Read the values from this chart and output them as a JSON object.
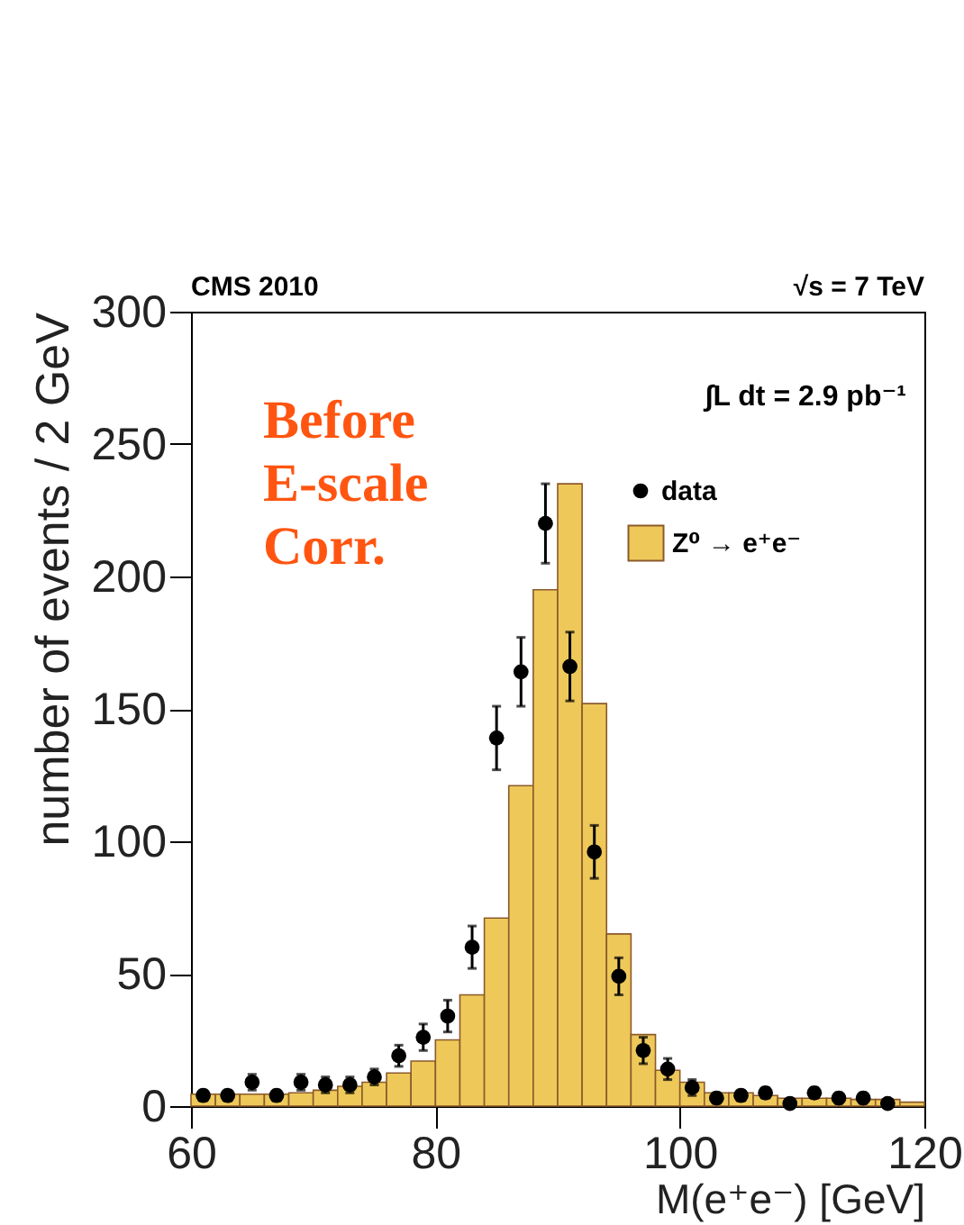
{
  "chart_data": {
    "type": "histogram",
    "xlabel": "M(e⁺e⁻) [GeV]",
    "ylabel": "number of events / 2 GeV",
    "annotations": [
      "CMS 2010",
      "√s = 7 TeV",
      "∫L dt = 2.9 pb⁻¹",
      "Before\nE-scale\nCorr."
    ],
    "xlim": [
      60,
      120
    ],
    "xticks": [
      60,
      80,
      100,
      120
    ],
    "ylim": [
      0,
      300
    ],
    "yticks": [
      0,
      50,
      100,
      150,
      200,
      250,
      300
    ],
    "legend": "top right",
    "grid": false,
    "marker": "circle",
    "series": [
      {
        "name": "data",
        "type": "scatter",
        "color": "#000000",
        "x": [
          61,
          63,
          65,
          67,
          69,
          71,
          73,
          75,
          77,
          79,
          81,
          83,
          85,
          87,
          89,
          91,
          93,
          95,
          97,
          99,
          101,
          103,
          105,
          107,
          109,
          111,
          113,
          115,
          117
        ],
        "values": [
          4,
          4,
          9,
          4,
          9,
          8,
          8,
          11,
          19,
          26,
          34,
          60,
          139,
          164,
          220,
          166,
          96,
          49,
          21,
          14,
          7,
          3,
          4,
          5,
          1,
          5,
          3,
          3,
          1
        ],
        "errors": [
          2,
          2,
          3,
          2,
          3,
          3,
          3,
          3,
          4,
          5,
          6,
          8,
          12,
          13,
          15,
          13,
          10,
          7,
          5,
          4,
          3,
          2,
          2,
          2,
          1,
          2,
          2,
          2,
          1
        ]
      },
      {
        "name": "Z⁰ → e⁺e⁻",
        "type": "histogram",
        "color": "#eec95a",
        "bins": [
          60,
          62,
          64,
          66,
          68,
          70,
          72,
          74,
          76,
          78,
          80,
          82,
          84,
          86,
          88,
          90,
          92,
          94,
          96,
          98,
          100,
          102,
          104,
          106,
          108,
          110,
          112,
          114,
          116,
          118,
          120
        ],
        "values": [
          4.5,
          4.5,
          4.5,
          4.5,
          5,
          6,
          7.5,
          9,
          12.5,
          17,
          25,
          42,
          71,
          121,
          195,
          235,
          152,
          65,
          27,
          13.5,
          9,
          5,
          5,
          4,
          3,
          3,
          3,
          2.5,
          2.5,
          1.5
        ]
      }
    ]
  }
}
